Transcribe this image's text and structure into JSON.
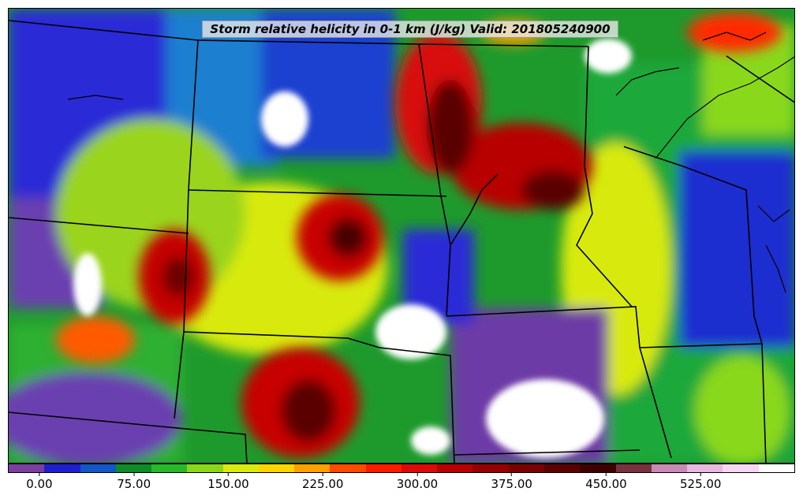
{
  "map": {
    "title": "Storm relative helicity in 0-1 km (J/kg) Valid: 201805240900",
    "variable": "Storm relative helicity in 0-1 km",
    "units": "J/kg",
    "valid_time": "201805240900",
    "region_features": [
      "state-borders",
      "coastlines",
      "great-lakes"
    ]
  },
  "colorbar": {
    "colors": [
      "#7b3fa0",
      "#1f1fd0",
      "#1456c6",
      "#118a28",
      "#27b82c",
      "#8cd61a",
      "#d8ea10",
      "#ffd400",
      "#ff9f00",
      "#ff4a00",
      "#ff1a00",
      "#dc0a0a",
      "#b80000",
      "#970000",
      "#7a0000",
      "#5a0000",
      "#3e0000",
      "#7a3240",
      "#c88ab4",
      "#e8b8e0",
      "#f6d6f2",
      "#ffffff"
    ],
    "ticks": [
      "0.00",
      "75.00",
      "150.00",
      "225.00",
      "300.00",
      "375.00",
      "450.00",
      "525.00"
    ],
    "value_range": [
      -25,
      600
    ]
  }
}
